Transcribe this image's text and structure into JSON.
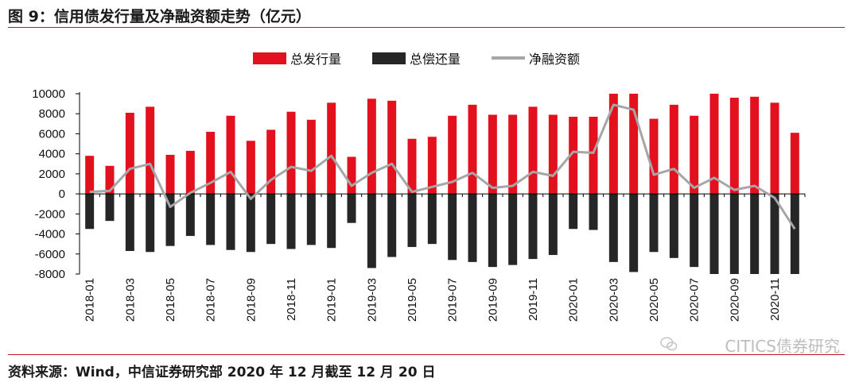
{
  "header": {
    "title": "图 9：信用债发行量及净融资额走势（亿元）"
  },
  "footer": {
    "source": "资料来源：Wind，中信证券研究部 2020 年 12 月截至 12 月 20 日"
  },
  "watermark": {
    "text": "CITICS债券研究",
    "icon": "wechat-icon"
  },
  "colors": {
    "issuance": "#e3101e",
    "repayment": "#262626",
    "net": "#a6a6a6",
    "rule": "#c8102e"
  },
  "chart_data": {
    "type": "bar",
    "title": "信用债发行量及净融资额走势（亿元）",
    "ylim": [
      -8000,
      10000
    ],
    "yticks": [
      10000,
      8000,
      6000,
      4000,
      2000,
      0,
      -2000,
      -4000,
      -6000,
      -8000
    ],
    "legend_position": "top-center",
    "categories": [
      "2018-01",
      "2018-02",
      "2018-03",
      "2018-04",
      "2018-05",
      "2018-06",
      "2018-07",
      "2018-08",
      "2018-09",
      "2018-10",
      "2018-11",
      "2018-12",
      "2019-01",
      "2019-02",
      "2019-03",
      "2019-04",
      "2019-05",
      "2019-06",
      "2019-07",
      "2019-08",
      "2019-09",
      "2019-10",
      "2019-11",
      "2019-12",
      "2020-01",
      "2020-02",
      "2020-03",
      "2020-04",
      "2020-05",
      "2020-06",
      "2020-07",
      "2020-08",
      "2020-09",
      "2020-10",
      "2020-11",
      "2020-12"
    ],
    "tick_labels": [
      "2018-01",
      "2018-03",
      "2018-05",
      "2018-07",
      "2018-09",
      "2018-11",
      "2019-01",
      "2019-03",
      "2019-05",
      "2019-07",
      "2019-09",
      "2019-11",
      "2020-01",
      "2020-03",
      "2020-05",
      "2020-07",
      "2020-09",
      "2020-11"
    ],
    "series": [
      {
        "name": "总发行量",
        "kind": "bar",
        "values": [
          3800,
          2800,
          8100,
          8700,
          3900,
          4300,
          6200,
          7800,
          5300,
          6400,
          8200,
          7400,
          9100,
          3700,
          9500,
          9300,
          5500,
          5700,
          7800,
          8900,
          7900,
          7900,
          8700,
          7900,
          7700,
          7700,
          10000,
          10000,
          7500,
          8900,
          7800,
          10000,
          9600,
          9700,
          9100,
          6100
        ]
      },
      {
        "name": "总偿还量",
        "kind": "bar",
        "values": [
          -3500,
          -2700,
          -5700,
          -5800,
          -5200,
          -4200,
          -5100,
          -5600,
          -5800,
          -5000,
          -5500,
          -5100,
          -5400,
          -2900,
          -7400,
          -6300,
          -5300,
          -5000,
          -6600,
          -6800,
          -7300,
          -7100,
          -6500,
          -6100,
          -3500,
          -3600,
          -6800,
          -7800,
          -5800,
          -6400,
          -7300,
          -8000,
          -8000,
          -8000,
          -8000,
          -8000
        ]
      },
      {
        "name": "净融资额",
        "kind": "line",
        "values": [
          200,
          300,
          2500,
          3000,
          -1300,
          100,
          1100,
          2200,
          -500,
          1400,
          2700,
          2300,
          3800,
          800,
          2100,
          3000,
          200,
          700,
          1200,
          2100,
          600,
          800,
          2200,
          1800,
          4200,
          4100,
          8900,
          8400,
          1900,
          2500,
          600,
          1600,
          400,
          800,
          -400,
          -3500
        ]
      }
    ]
  }
}
